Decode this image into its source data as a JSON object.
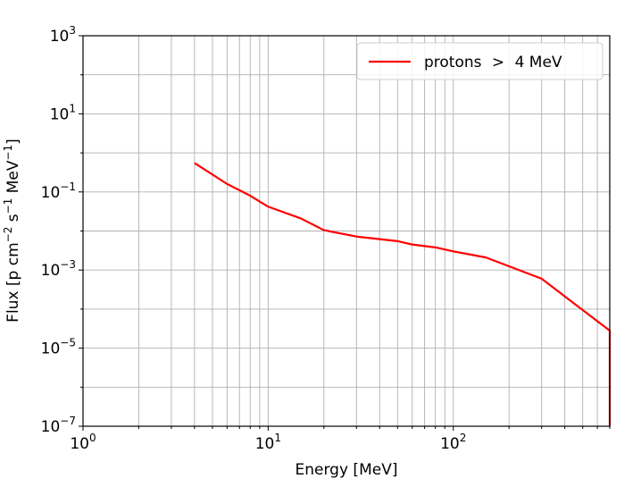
{
  "chart_data": {
    "type": "line",
    "title": "",
    "xlabel": "Energy [MeV]",
    "ylabel": "Flux [p cm$^{-2}$ s$^{-1}$ MeV$^{-1}$]",
    "xscale": "log",
    "yscale": "log",
    "xlim": [
      1,
      700
    ],
    "ylim": [
      1e-07,
      1000
    ],
    "grid": true,
    "legend_position": "top-right",
    "x_ticks": [
      {
        "value": 1,
        "base": "10",
        "exp": "0"
      },
      {
        "value": 10,
        "base": "10",
        "exp": "1"
      },
      {
        "value": 100,
        "base": "10",
        "exp": "2"
      }
    ],
    "y_ticks": [
      {
        "value": 1e-07,
        "base": "10",
        "exp": "−7"
      },
      {
        "value": 1e-05,
        "base": "10",
        "exp": "−5"
      },
      {
        "value": 0.001,
        "base": "10",
        "exp": "−3"
      },
      {
        "value": 0.1,
        "base": "10",
        "exp": "−1"
      },
      {
        "value": 10,
        "base": "10",
        "exp": "1"
      },
      {
        "value": 1000,
        "base": "10",
        "exp": "3"
      }
    ],
    "series": [
      {
        "name": "protons > 4 MeV",
        "color": "#ff0000",
        "x": [
          4,
          6,
          8,
          10,
          15,
          20,
          30,
          50,
          60,
          80,
          100,
          150,
          300,
          700,
          700
        ],
        "y": [
          0.55,
          0.16,
          0.08,
          0.042,
          0.021,
          0.0105,
          0.0072,
          0.0055,
          0.0045,
          0.0038,
          0.003,
          0.0021,
          0.0006,
          2.8e-05,
          1e-07
        ]
      }
    ]
  },
  "ylabel_parts": {
    "pre": "Flux [p cm",
    "sup1": "−2",
    "mid1": " s",
    "sup2": "−1",
    "mid2": " MeV",
    "sup3": "−1",
    "post": "]"
  },
  "legend": {
    "label_parts": [
      "protons",
      ">",
      "4 MeV"
    ]
  }
}
